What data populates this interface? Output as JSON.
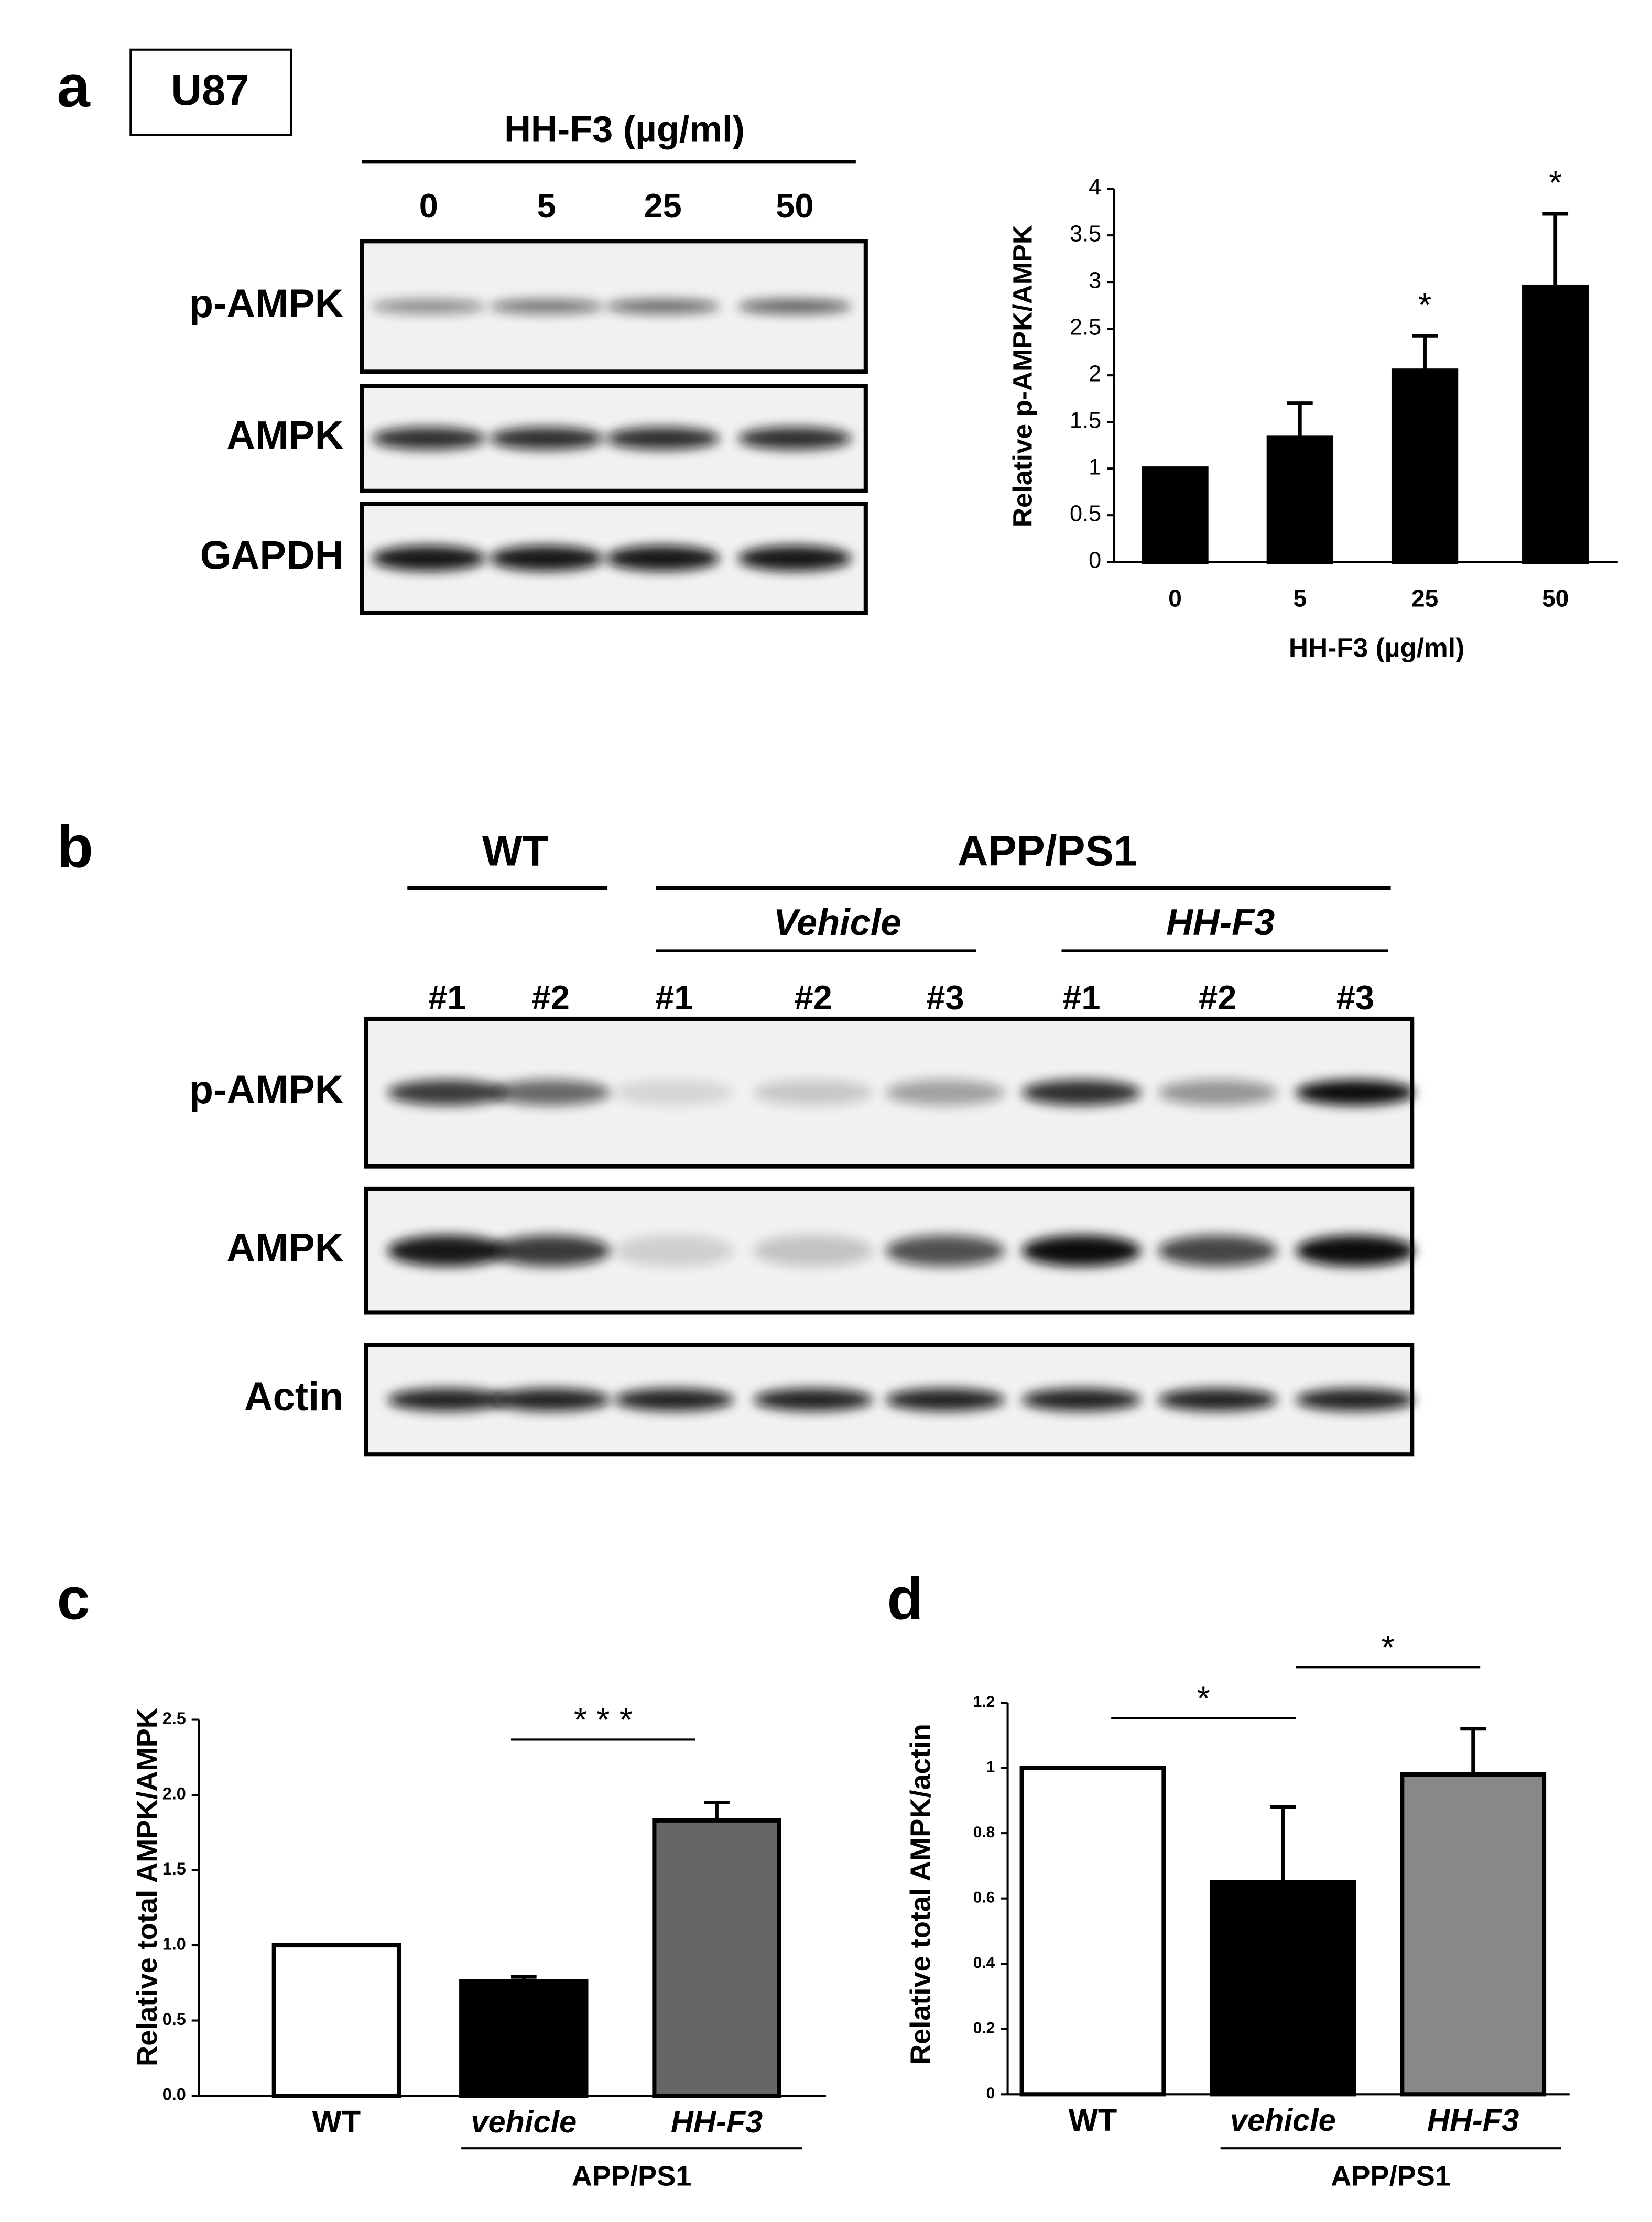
{
  "panel_labels": [
    "a",
    "b",
    "c",
    "d"
  ],
  "blots": [
    {
      "cell_line": "U87",
      "treatment": "HH-F3 (µg/ml)",
      "lanes": [
        "0",
        "5",
        "25",
        "50"
      ],
      "rows": [
        "p-AMPK",
        "AMPK",
        "GAPDH"
      ]
    },
    {
      "groups": [
        "WT",
        "APP/PS1"
      ],
      "subgroups": [
        "Vehicle",
        "HH-F3"
      ],
      "lanes": [
        "#1",
        "#2",
        "#1",
        "#2",
        "#3",
        "#1",
        "#2",
        "#3"
      ],
      "rows": [
        "p-AMPK",
        "AMPK",
        "Actin"
      ]
    }
  ],
  "chart_data": [
    {
      "type": "bar",
      "y_label": "Relative p-AMPK/AMPK",
      "x_label": "HH-F3 (µg/ml)",
      "categories": [
        "0",
        "5",
        "25",
        "50"
      ],
      "values": [
        1,
        1.33,
        2.05,
        2.95
      ],
      "errors": [
        0,
        0.37,
        0.37,
        0.78
      ],
      "colors": [
        "#000000",
        "#000000",
        "#000000",
        "#000000"
      ],
      "annotations": [
        "*",
        "*"
      ],
      "ylim": [
        0,
        4
      ],
      "yticks": [
        0,
        0.5,
        1,
        1.5,
        2,
        2.5,
        3,
        3.5,
        4
      ]
    },
    {
      "type": "bar",
      "y_label": "Relative total AMPK/AMPK",
      "group_label": "APP/PS1",
      "categories": [
        "WT",
        "vehicle",
        "HH-F3"
      ],
      "values": [
        1.0,
        0.76,
        1.83
      ],
      "errors": [
        0,
        0.03,
        0.12
      ],
      "colors": [
        "#ffffff",
        "#000000",
        "#666666"
      ],
      "annotations": [
        "*",
        "* * *"
      ],
      "ylim": [
        0,
        2.5
      ],
      "yticks": [
        {
          "value": 0,
          "label": "0.0"
        },
        0.5,
        {
          "value": 1,
          "label": "1.0"
        },
        1.5,
        {
          "value": 2,
          "label": "2.0"
        },
        2.5
      ]
    },
    {
      "type": "bar",
      "y_label": "Relative total AMPK/actin",
      "group_label": "APP/PS1",
      "categories": [
        "WT",
        "vehicle",
        "HH-F3"
      ],
      "values": [
        1,
        0.65,
        0.98
      ],
      "errors": [
        0,
        0.23,
        0.14
      ],
      "colors": [
        "#ffffff",
        "#000000",
        "#888888"
      ],
      "annotations": [
        "*",
        "*"
      ],
      "ylim": [
        0,
        1.2
      ],
      "yticks": [
        0,
        0.2,
        0.4,
        0.6,
        0.8,
        1,
        1.2
      ]
    }
  ]
}
